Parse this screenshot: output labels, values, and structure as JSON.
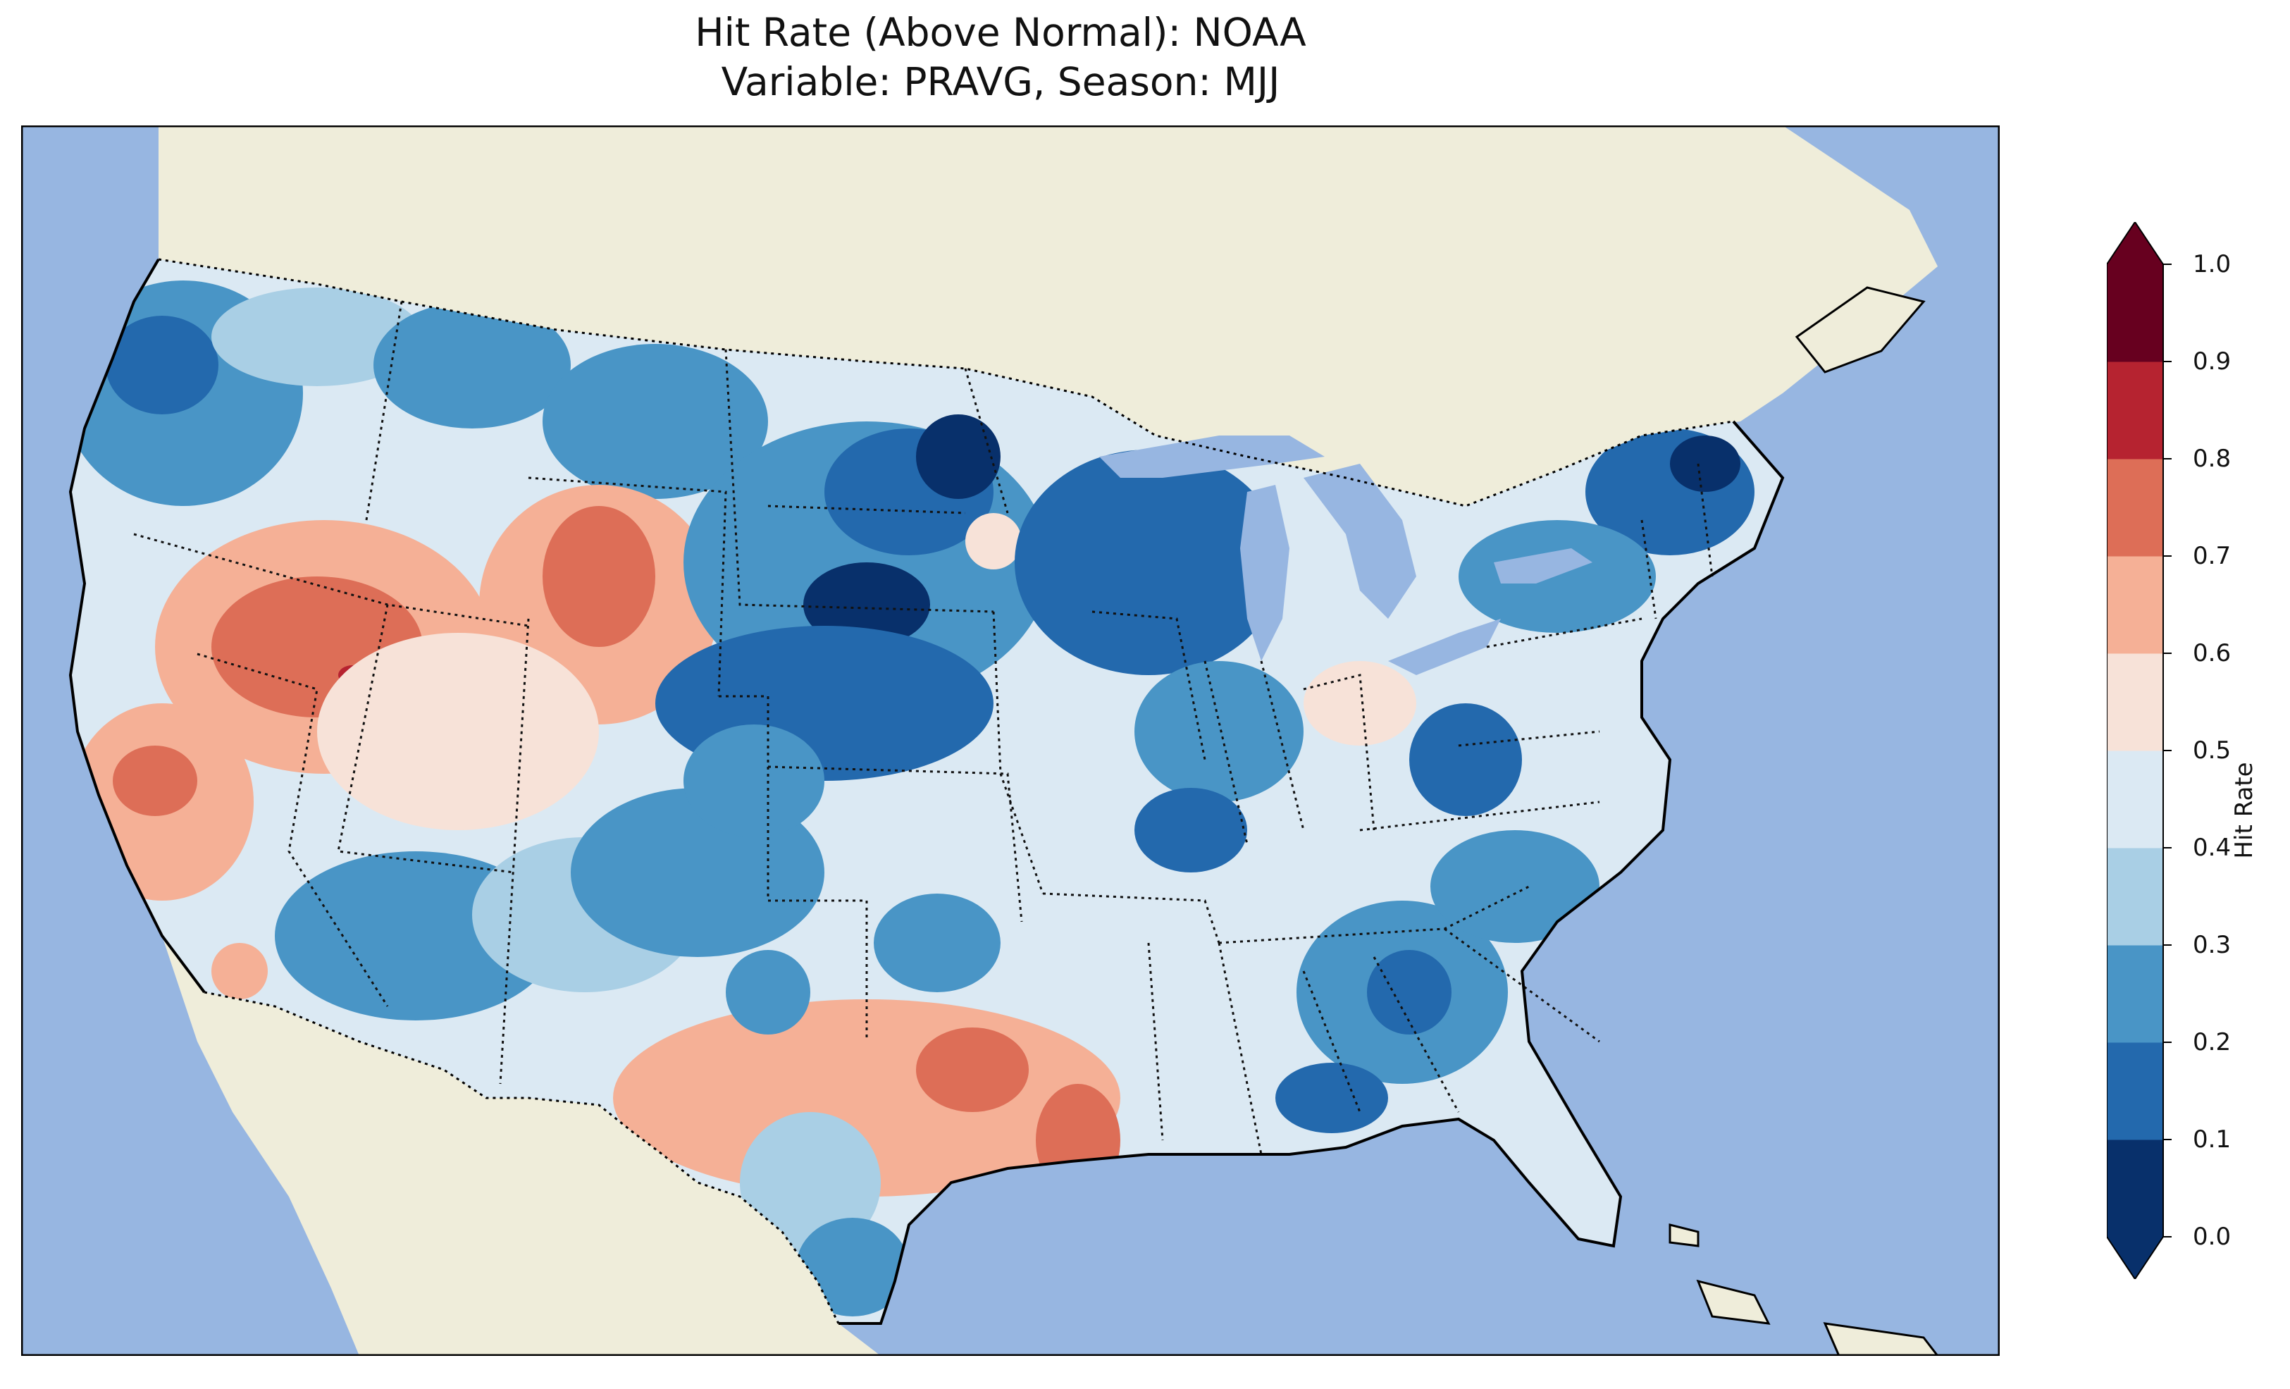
{
  "title": {
    "line1": "Hit Rate (Above Normal): NOAA",
    "line2": "Variable: PRAVG, Season: MJJ"
  },
  "colors": {
    "ocean": "#97b6e1",
    "land": "#efedda",
    "scale": [
      "#053061",
      "#2166ac",
      "#4393c3",
      "#92c5de",
      "#d1e5f0",
      "#fddbc7",
      "#f4a582",
      "#d6604d",
      "#b2182b",
      "#67001f"
    ],
    "scale_0_1_reference": [
      "#08306b",
      "#2369ad",
      "#4995c6",
      "#a9cfe5",
      "#dbe9f3",
      "#f7e2d8",
      "#f5b096",
      "#dd6e57",
      "#b62330",
      "#67001f"
    ]
  },
  "colorbar": {
    "label": "Hit Rate",
    "ticks": [
      "0.0",
      "0.1",
      "0.2",
      "0.3",
      "0.4",
      "0.5",
      "0.6",
      "0.7",
      "0.8",
      "0.9",
      "1.0"
    ],
    "extend": "both"
  },
  "map": {
    "projection": "Lambert-style CONUS",
    "regions": [
      {
        "name": "Pacific Northwest",
        "value": 0.2
      },
      {
        "name": "Great Basin / Nevada-Utah",
        "value": 0.65
      },
      {
        "name": "California",
        "value": 0.6
      },
      {
        "name": "Northern Plains / Minnesota",
        "value": 0.15
      },
      {
        "name": "Central Plains / Nebraska",
        "value": 0.15
      },
      {
        "name": "Texas / South Central",
        "value": 0.6
      },
      {
        "name": "Southeast",
        "value": 0.2
      },
      {
        "name": "Northeast",
        "value": 0.15
      },
      {
        "name": "Ohio Valley",
        "value": 0.45
      },
      {
        "name": "Florida",
        "value": 0.45
      },
      {
        "name": "Southwest / New Mexico",
        "value": 0.35
      }
    ]
  }
}
